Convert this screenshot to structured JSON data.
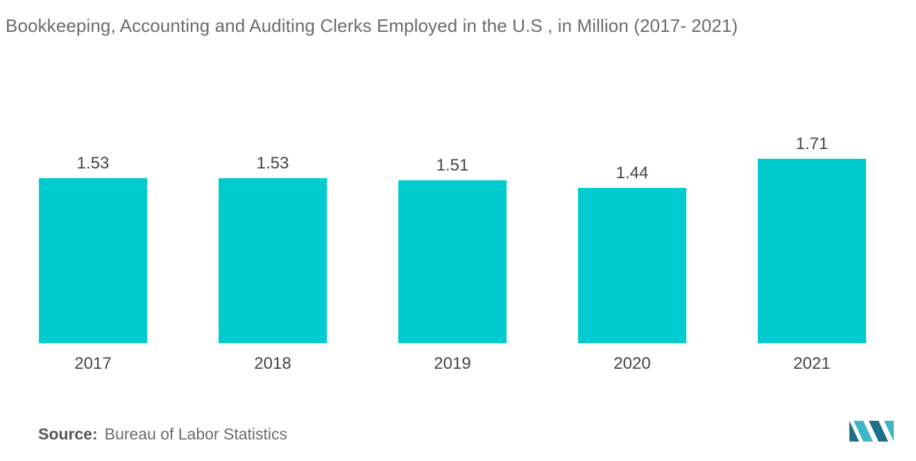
{
  "colors": {
    "bar": "#00CCCF",
    "text": "#444444",
    "title": "#6b6b6b",
    "logo_dark": "#1f6f8b",
    "logo_light": "#3fb6c8"
  },
  "chart_data": {
    "type": "bar",
    "title": "Bookkeeping, Accounting and Auditing Clerks Employed in the U.S , in Million  (2017- 2021)",
    "categories": [
      "2017",
      "2018",
      "2019",
      "2020",
      "2021"
    ],
    "values": [
      1.53,
      1.53,
      1.51,
      1.44,
      1.71
    ],
    "value_labels": [
      "1.53",
      "1.53",
      "1.51",
      "1.44",
      "1.71"
    ],
    "xlabel": "",
    "ylabel": "",
    "ylim": [
      0,
      1.71
    ],
    "grid": false,
    "legend": "none"
  },
  "source": {
    "label": "Source:",
    "text": "Bureau of Labor Statistics"
  },
  "logo": {
    "icon": "mordor-intelligence-logo-icon"
  }
}
